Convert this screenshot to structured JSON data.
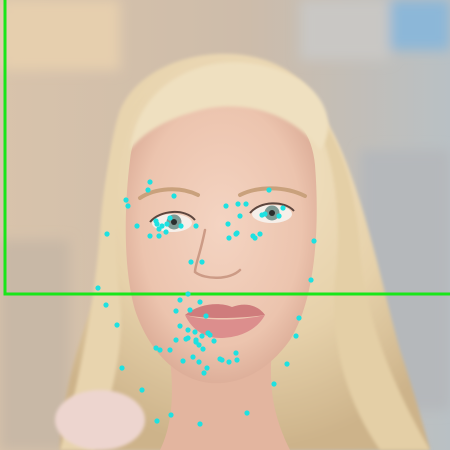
{
  "image": {
    "subject": "portrait-photo",
    "colors": {
      "background_left": "#d8c3ab",
      "background_right": "#b9c0c4",
      "background_top_right": "#8cb7d8",
      "hair": "#ead8b4",
      "hair_shadow": "#cdb38a",
      "skin": "#efc9b5",
      "skin_shadow": "#dba891",
      "lips": "#d98787",
      "eyes": "#7e9a94",
      "shoulder_fur": "#edd5cf",
      "box_stroke": "#19e619",
      "landmark": "#1de1e1"
    }
  },
  "overlay": {
    "bounding_box_color": "#19e619",
    "landmark_color": "#1de1e1",
    "landmark_count": 84
  }
}
